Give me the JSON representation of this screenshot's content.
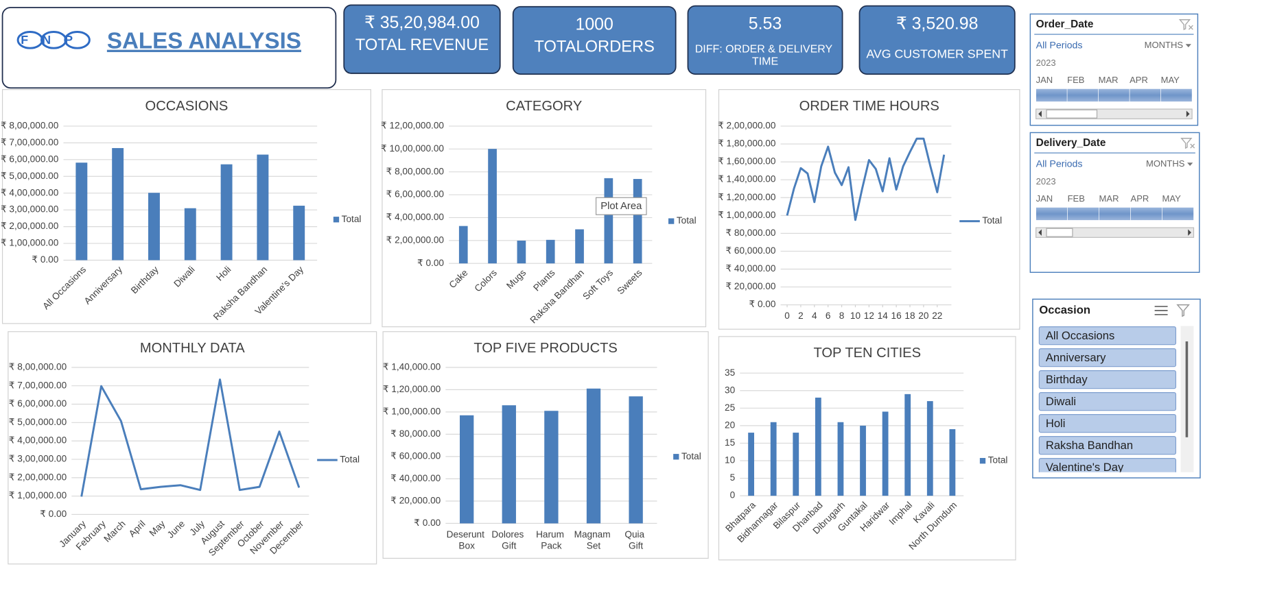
{
  "header": {
    "logo": "FNP",
    "title": "SALES ANALYSIS"
  },
  "kpis": [
    {
      "value": "₹ 35,20,984.00",
      "label": "TOTAL  REVENUE"
    },
    {
      "value": "1000",
      "label": "TOTALORDERS"
    },
    {
      "value": "5.53",
      "label": "DIFF: ORDER & DELIVERY TIME"
    },
    {
      "value": "₹ 3,520.98",
      "label": "AVG CUSTOMER SPENT"
    }
  ],
  "chart_data": [
    {
      "type": "bar",
      "title": "OCCASIONS",
      "categories": [
        "All Occasions",
        "Anniversary",
        "Birthday",
        "Diwali",
        "Holi",
        "Raksha Bandhan",
        "Valentine's Day"
      ],
      "series": [
        {
          "name": "Total",
          "color": "#4a7ebb",
          "values": [
            582000,
            669000,
            402000,
            310000,
            572000,
            630000,
            325000
          ]
        }
      ],
      "ylim": [
        0,
        800000
      ],
      "yticks": [
        {
          "value": 0,
          "label": "₹ 0.00"
        },
        {
          "value": 100000,
          "label": "₹ 1,00,000.00"
        },
        {
          "value": 200000,
          "label": "₹ 2,00,000.00"
        },
        {
          "value": 300000,
          "label": "₹ 3,00,000.00"
        },
        {
          "value": 400000,
          "label": "₹ 4,00,000.00"
        },
        {
          "value": 500000,
          "label": "₹ 5,00,000.00"
        },
        {
          "value": 600000,
          "label": "₹ 6,00,000.00"
        },
        {
          "value": 700000,
          "label": "₹ 7,00,000.00"
        },
        {
          "value": 800000,
          "label": "₹ 8,00,000.00"
        }
      ],
      "grid": true,
      "legend": "right"
    },
    {
      "type": "bar",
      "title": "CATEGORY",
      "categories": [
        "Cake",
        "Colors",
        "Mugs",
        "Plants",
        "Raksha Bandhan",
        "Soft Toys",
        "Sweets"
      ],
      "series": [
        {
          "name": "Total",
          "color": "#4a7ebb",
          "values": [
            327000,
            1001000,
            199000,
            206000,
            298000,
            745000,
            738000
          ]
        }
      ],
      "ylim": [
        0,
        1200000
      ],
      "yticks": [
        {
          "value": 0,
          "label": "₹ 0.00"
        },
        {
          "value": 200000,
          "label": "₹ 2,00,000.00"
        },
        {
          "value": 400000,
          "label": "₹ 4,00,000.00"
        },
        {
          "value": 600000,
          "label": "₹ 6,00,000.00"
        },
        {
          "value": 800000,
          "label": "₹ 8,00,000.00"
        },
        {
          "value": 1000000,
          "label": "₹ 10,00,000.00"
        },
        {
          "value": 1200000,
          "label": "₹ 12,00,000.00"
        }
      ],
      "grid": true,
      "legend": "right",
      "tooltip": "Plot Area"
    },
    {
      "type": "line",
      "title": "ORDER TIME HOURS",
      "x": [
        0,
        1,
        2,
        3,
        4,
        5,
        6,
        7,
        8,
        9,
        10,
        11,
        12,
        13,
        14,
        15,
        16,
        17,
        18,
        19,
        20,
        21,
        22,
        23
      ],
      "xlim": [
        0,
        23
      ],
      "xticks": [
        0,
        2,
        4,
        6,
        8,
        10,
        12,
        14,
        16,
        18,
        20,
        22
      ],
      "series": [
        {
          "name": "Total",
          "color": "#4a7ebb",
          "values": [
            100000,
            130000,
            153000,
            147000,
            115000,
            155000,
            177000,
            148000,
            134000,
            154000,
            95000,
            130000,
            162000,
            152000,
            127000,
            164000,
            129000,
            155000,
            171000,
            186000,
            186000,
            155000,
            126000,
            168000
          ]
        }
      ],
      "ylim": [
        0,
        200000
      ],
      "yticks": [
        {
          "value": 0,
          "label": "₹ 0.00"
        },
        {
          "value": 20000,
          "label": "₹ 20,000.00"
        },
        {
          "value": 40000,
          "label": "₹ 40,000.00"
        },
        {
          "value": 60000,
          "label": "₹ 60,000.00"
        },
        {
          "value": 80000,
          "label": "₹ 80,000.00"
        },
        {
          "value": 100000,
          "label": "₹ 1,00,000.00"
        },
        {
          "value": 120000,
          "label": "₹ 1,20,000.00"
        },
        {
          "value": 140000,
          "label": "₹ 1,40,000.00"
        },
        {
          "value": 160000,
          "label": "₹ 1,60,000.00"
        },
        {
          "value": 180000,
          "label": "₹ 1,80,000.00"
        },
        {
          "value": 200000,
          "label": "₹ 2,00,000.00"
        }
      ],
      "grid": true,
      "legend": "right"
    },
    {
      "type": "line",
      "title": "MONTHLY DATA",
      "categories": [
        "January",
        "February",
        "March",
        "April",
        "May",
        "June",
        "July",
        "August",
        "September",
        "October",
        "November",
        "December"
      ],
      "series": [
        {
          "name": "Total",
          "color": "#4a7ebb",
          "values": [
            97000,
            698000,
            508000,
            137000,
            150000,
            159000,
            133000,
            734000,
            133000,
            150000,
            451000,
            146000
          ]
        }
      ],
      "ylim": [
        0,
        800000
      ],
      "yticks": [
        {
          "value": 0,
          "label": "₹ 0.00"
        },
        {
          "value": 100000,
          "label": "₹ 1,00,000.00"
        },
        {
          "value": 200000,
          "label": "₹ 2,00,000.00"
        },
        {
          "value": 300000,
          "label": "₹ 3,00,000.00"
        },
        {
          "value": 400000,
          "label": "₹ 4,00,000.00"
        },
        {
          "value": 500000,
          "label": "₹ 5,00,000.00"
        },
        {
          "value": 600000,
          "label": "₹ 6,00,000.00"
        },
        {
          "value": 700000,
          "label": "₹ 7,00,000.00"
        },
        {
          "value": 800000,
          "label": "₹ 8,00,000.00"
        }
      ],
      "grid": true,
      "legend": "right"
    },
    {
      "type": "bar",
      "title": "TOP FIVE PRODUCTS",
      "categories": [
        "Deserunt Box",
        "Dolores Gift",
        "Harum Pack",
        "Magnam Set",
        "Quia Gift"
      ],
      "series": [
        {
          "name": "Total",
          "color": "#4a7ebb",
          "values": [
            97000,
            106000,
            101000,
            121000,
            114000
          ]
        }
      ],
      "ylim": [
        0,
        140000
      ],
      "yticks": [
        {
          "value": 0,
          "label": "₹ 0.00"
        },
        {
          "value": 20000,
          "label": "₹ 20,000.00"
        },
        {
          "value": 40000,
          "label": "₹ 40,000.00"
        },
        {
          "value": 60000,
          "label": "₹ 60,000.00"
        },
        {
          "value": 80000,
          "label": "₹ 80,000.00"
        },
        {
          "value": 100000,
          "label": "₹ 1,00,000.00"
        },
        {
          "value": 120000,
          "label": "₹ 1,20,000.00"
        },
        {
          "value": 140000,
          "label": "₹ 1,40,000.00"
        }
      ],
      "grid": true,
      "legend": "right"
    },
    {
      "type": "bar",
      "title": "TOP TEN CITIES",
      "categories": [
        "Bhatpara",
        "Bidhannagar",
        "Bilaspur",
        "Dhanbad",
        "Dibrugarh",
        "Guntakal",
        "Haridwar",
        "Imphal",
        "Kavali",
        "North Dumdum"
      ],
      "series": [
        {
          "name": "Total",
          "color": "#4a7ebb",
          "values": [
            18,
            21,
            18,
            28,
            21,
            20,
            24,
            29,
            27,
            19
          ]
        }
      ],
      "ylim": [
        0,
        35
      ],
      "yticks": [
        0,
        5,
        10,
        15,
        20,
        25,
        30,
        35
      ],
      "grid": true,
      "legend": "right"
    }
  ],
  "slicers": [
    {
      "title": "Order_Date",
      "selection": "All Periods",
      "level": "MONTHS",
      "year": "2023",
      "months": [
        "JAN",
        "FEB",
        "MAR",
        "APR",
        "MAY"
      ]
    },
    {
      "title": "Delivery_Date",
      "selection": "All Periods",
      "level": "MONTHS",
      "year": "2023",
      "months": [
        "JAN",
        "FEB",
        "MAR",
        "APR",
        "MAY"
      ]
    },
    {
      "title": "Occasion",
      "items": [
        "All Occasions",
        "Anniversary",
        "Birthday",
        "Diwali",
        "Holi",
        "Raksha Bandhan",
        "Valentine's Day"
      ]
    }
  ]
}
